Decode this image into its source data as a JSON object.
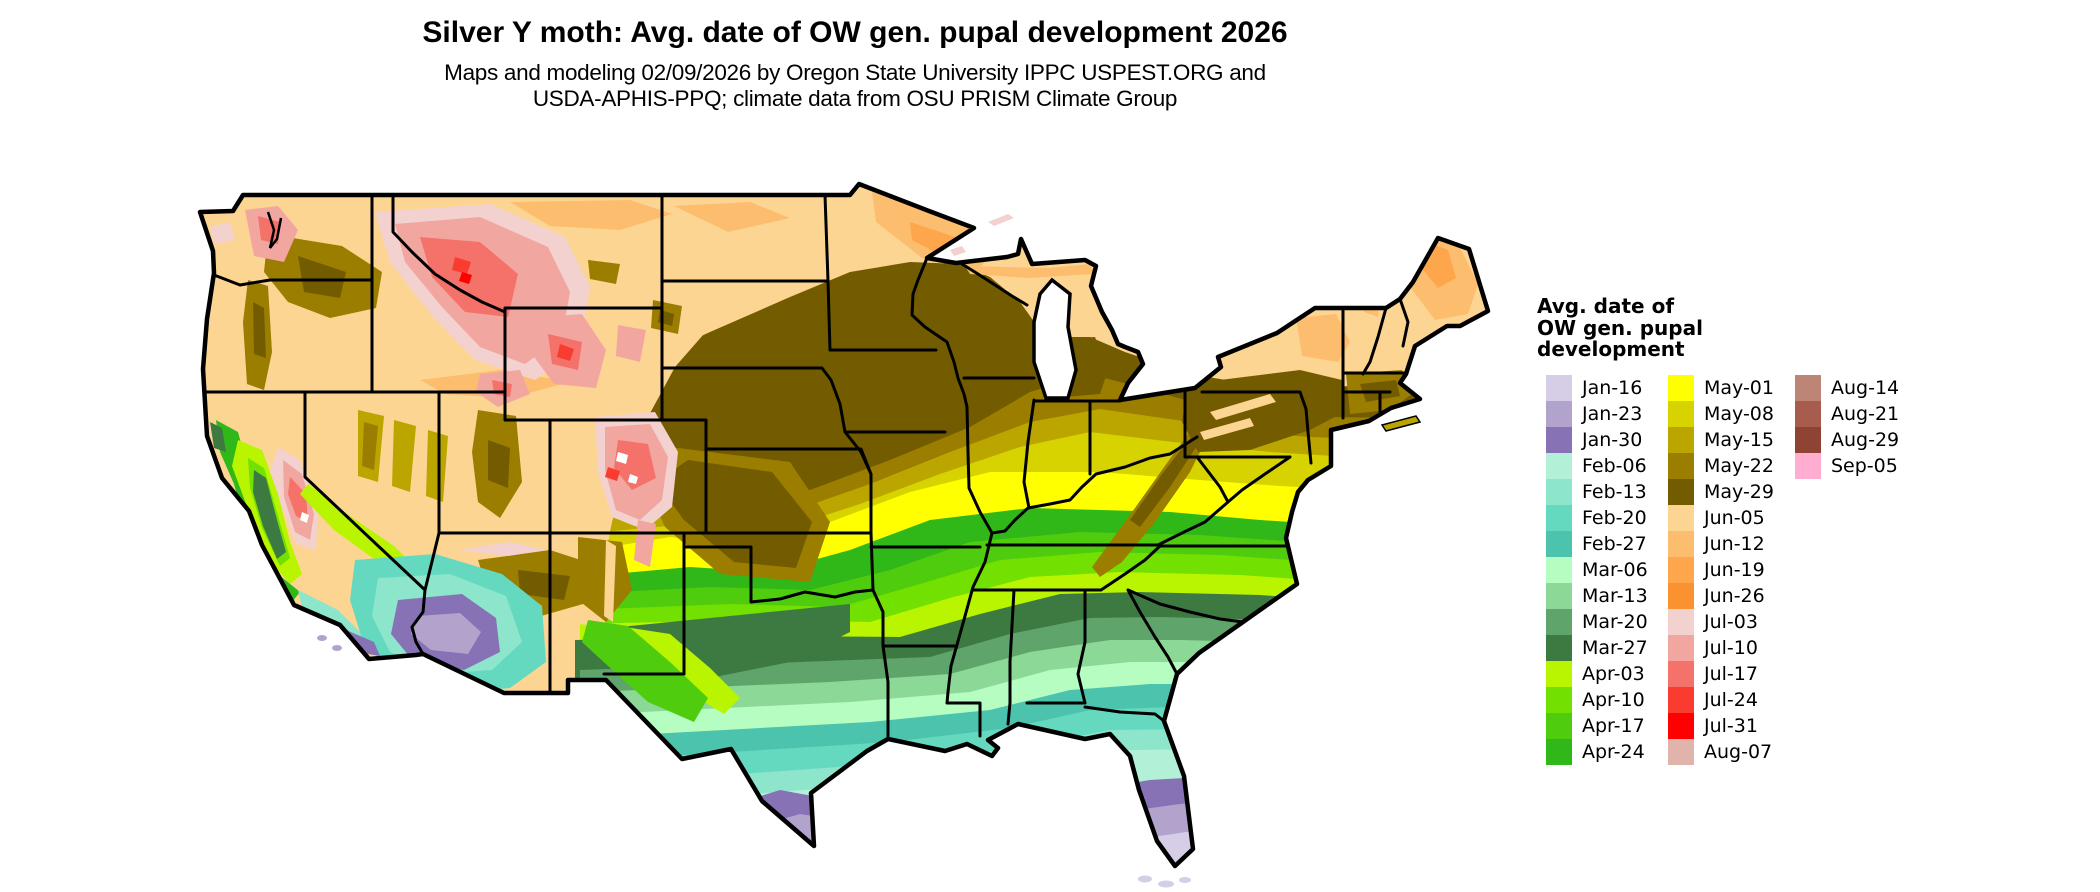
{
  "title": "Silver Y moth: Avg. date of OW gen. pupal development 2026",
  "subtitle_line1": "Maps and modeling 02/09/2026 by Oregon State University IPPC USPEST.ORG and",
  "subtitle_line2": "USDA-APHIS-PPQ; climate data from OSU PRISM Climate Group",
  "legend": {
    "title_lines": [
      "Avg. date of",
      "OW gen. pupal",
      "development"
    ],
    "columns": [
      [
        {
          "label": "Jan-16",
          "color": "#d6cde7"
        },
        {
          "label": "Jan-23",
          "color": "#b2a3cd"
        },
        {
          "label": "Jan-30",
          "color": "#8672b4"
        },
        {
          "label": "Feb-06",
          "color": "#b2f0d8"
        },
        {
          "label": "Feb-13",
          "color": "#8de5cb"
        },
        {
          "label": "Feb-20",
          "color": "#65d9bf"
        },
        {
          "label": "Feb-27",
          "color": "#4cc3ac"
        },
        {
          "label": "Mar-06",
          "color": "#b5fdc0"
        },
        {
          "label": "Mar-13",
          "color": "#8cd997"
        },
        {
          "label": "Mar-20",
          "color": "#5fa56b"
        },
        {
          "label": "Mar-27",
          "color": "#3d7a42"
        },
        {
          "label": "Apr-03",
          "color": "#b9f500"
        },
        {
          "label": "Apr-10",
          "color": "#72e000"
        },
        {
          "label": "Apr-17",
          "color": "#4fcc0e"
        },
        {
          "label": "Apr-24",
          "color": "#2fb818"
        }
      ],
      [
        {
          "label": "May-01",
          "color": "#ffff00"
        },
        {
          "label": "May-08",
          "color": "#d6d300"
        },
        {
          "label": "May-15",
          "color": "#bba600"
        },
        {
          "label": "May-22",
          "color": "#9b7d00"
        },
        {
          "label": "May-29",
          "color": "#735c00"
        },
        {
          "label": "Jun-05",
          "color": "#fdd593"
        },
        {
          "label": "Jun-12",
          "color": "#fdbd6e"
        },
        {
          "label": "Jun-19",
          "color": "#fda64b"
        },
        {
          "label": "Jun-26",
          "color": "#fb9230"
        },
        {
          "label": "Jul-03",
          "color": "#f2d1cf"
        },
        {
          "label": "Jul-10",
          "color": "#f2a6a0"
        },
        {
          "label": "Jul-17",
          "color": "#f4726a"
        },
        {
          "label": "Jul-24",
          "color": "#fa3c30"
        },
        {
          "label": "Jul-31",
          "color": "#ff0000"
        },
        {
          "label": "Aug-07",
          "color": "#e0b3ab"
        }
      ],
      [
        {
          "label": "Aug-14",
          "color": "#bd8575"
        },
        {
          "label": "Aug-21",
          "color": "#a85c4d"
        },
        {
          "label": "Aug-29",
          "color": "#8f4433"
        },
        {
          "label": "Sep-05",
          "color": "#ffaed2"
        }
      ]
    ]
  }
}
